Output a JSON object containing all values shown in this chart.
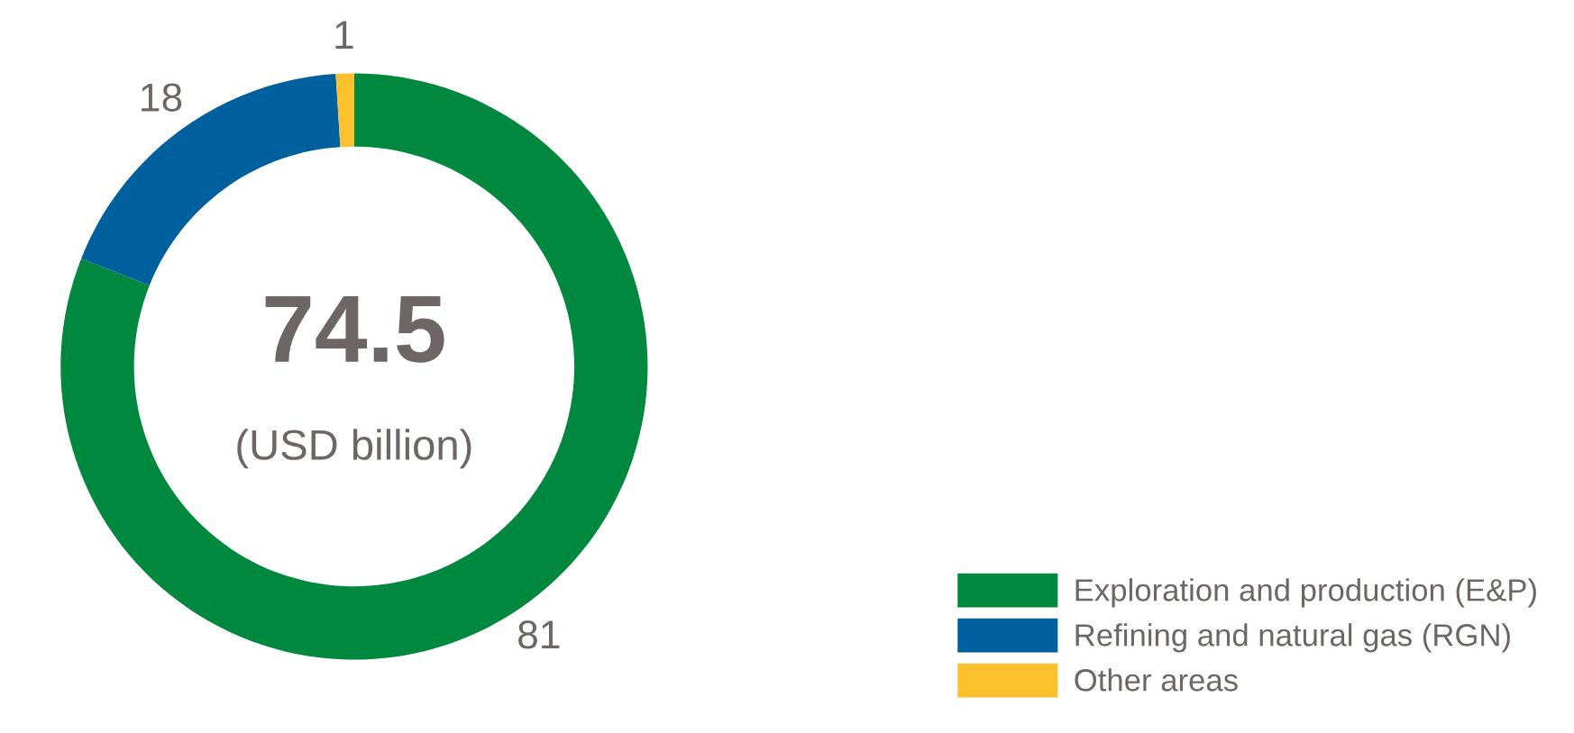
{
  "chart_data": {
    "type": "donut",
    "categories": [
      "Exploration and production (E&P)",
      "Refining and natural gas (RGN)",
      "Other areas"
    ],
    "values": [
      81,
      18,
      1
    ],
    "colors": [
      "#00883f",
      "#005f9d",
      "#fcc12d"
    ],
    "data_labels": true,
    "annotations": [
      "74.5",
      "(USD billion)"
    ],
    "legend": "bottom right"
  }
}
